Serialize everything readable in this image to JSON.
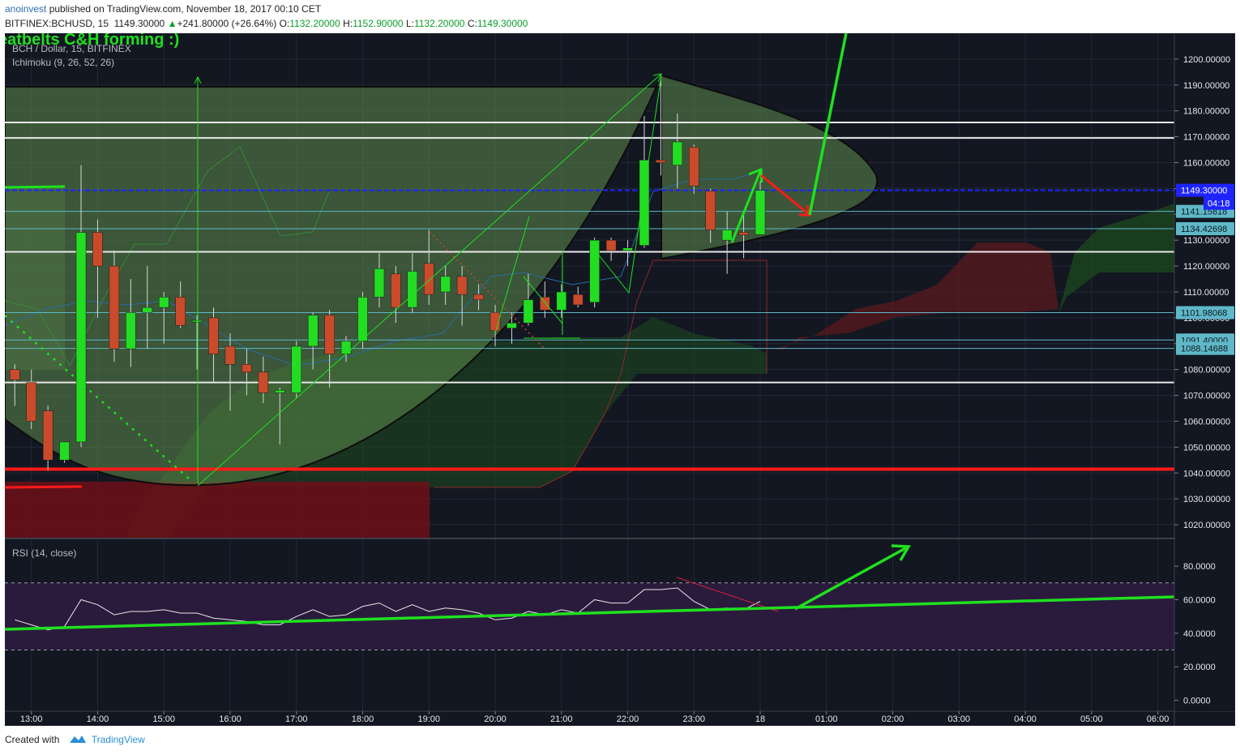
{
  "header": {
    "author": "anoinvest",
    "published_text": " published on TradingView.com, November 18, 2017 00:10 CET",
    "symbol": "BITFINEX:BCHUSD, 15",
    "last": "1149.30000",
    "change_arrow": "▲",
    "change": "+241.80000 (+26.64%)",
    "o_label": "O:",
    "o_value": "1132.20000",
    "h_label": "H:",
    "h_value": "1152.90000",
    "l_label": "L:",
    "l_value": "1132.20000",
    "c_label": "C:",
    "c_value": "1149.30000"
  },
  "chart_overlay": {
    "annotation": "eatbelts C&H forming :)",
    "instrument_title": "BCH / Dollar, 15, BITFINEX",
    "indicator_label": "Ichimoku (9, 26, 52, 26)",
    "rsi_label": "RSI (14, close)",
    "countdown": "04:18"
  },
  "footer": {
    "created_with": "Created with",
    "brand": "TradingView"
  },
  "colors": {
    "background": "#131722",
    "bull": "#22dd22",
    "bear": "#c94b2b",
    "annotation_green": "#1fe01f",
    "annotation_red": "#ff1a1a",
    "current_price_line": "#1e24ff",
    "rsi_band": "#2a1b3d",
    "cloud_bull": "#1d4a1d",
    "cloud_bear": "#5a1a1e"
  },
  "chart_data": {
    "type": "candlestick",
    "price_axis": {
      "range": [
        1015,
        1210
      ],
      "ticks": [
        "1200.00000",
        "1190.00000",
        "1180.00000",
        "1170.00000",
        "1160.00000",
        "1150.00000",
        "1140.00000",
        "1130.00000",
        "1120.00000",
        "1110.00000",
        "1100.00000",
        "1090.00000",
        "1080.00000",
        "1070.00000",
        "1060.00000",
        "1050.00000",
        "1040.00000",
        "1030.00000",
        "1020.00000"
      ],
      "tick_values": [
        1200,
        1190,
        1180,
        1170,
        1160,
        1150,
        1140,
        1130,
        1120,
        1110,
        1100,
        1090,
        1080,
        1070,
        1060,
        1050,
        1040,
        1030,
        1020
      ],
      "price_labels": [
        {
          "text": "1149.30000",
          "value": 1149.3,
          "kind": "current"
        },
        {
          "text": "1141.15818",
          "value": 1141.16,
          "kind": "level"
        },
        {
          "text": "1134.42698",
          "value": 1134.43,
          "kind": "level"
        },
        {
          "text": "1101.98068",
          "value": 1101.98,
          "kind": "level"
        },
        {
          "text": "1091.40000",
          "value": 1091.4,
          "kind": "level"
        },
        {
          "text": "1088.14688",
          "value": 1088.15,
          "kind": "level"
        }
      ]
    },
    "time_axis": {
      "labels": [
        "13:00",
        "14:00",
        "15:00",
        "16:00",
        "17:00",
        "18:00",
        "19:00",
        "20:00",
        "21:00",
        "22:00",
        "23:00",
        "18",
        "01:00",
        "02:00",
        "03:00",
        "04:00",
        "05:00",
        "06:00"
      ],
      "label_hours": [
        13,
        14,
        15,
        16,
        17,
        18,
        19,
        20,
        21,
        22,
        23,
        24,
        25,
        26,
        27,
        28,
        29,
        30
      ],
      "range_hours": [
        12.6,
        30.25
      ]
    },
    "candles": [
      {
        "t": 12.75,
        "o": 1080,
        "h": 1082,
        "l": 1066,
        "c": 1076
      },
      {
        "t": 13.0,
        "o": 1075,
        "h": 1080,
        "l": 1057,
        "c": 1060
      },
      {
        "t": 13.25,
        "o": 1064,
        "h": 1066,
        "l": 1041,
        "c": 1045
      },
      {
        "t": 13.5,
        "o": 1045,
        "h": 1051,
        "l": 1044,
        "c": 1052
      },
      {
        "t": 13.75,
        "o": 1052,
        "h": 1159,
        "l": 1050,
        "c": 1133
      },
      {
        "t": 14.0,
        "o": 1133,
        "h": 1138,
        "l": 1100,
        "c": 1120
      },
      {
        "t": 14.25,
        "o": 1120,
        "h": 1126,
        "l": 1083,
        "c": 1088
      },
      {
        "t": 14.5,
        "o": 1088,
        "h": 1115,
        "l": 1081,
        "c": 1102
      },
      {
        "t": 14.75,
        "o": 1102,
        "h": 1120,
        "l": 1088,
        "c": 1104
      },
      {
        "t": 15.0,
        "o": 1104,
        "h": 1110,
        "l": 1090,
        "c": 1108
      },
      {
        "t": 15.25,
        "o": 1108,
        "h": 1114,
        "l": 1096,
        "c": 1097
      },
      {
        "t": 15.5,
        "o": 1099,
        "h": 1101,
        "l": 1080,
        "c": 1099
      },
      {
        "t": 15.75,
        "o": 1100,
        "h": 1104,
        "l": 1075,
        "c": 1086
      },
      {
        "t": 16.0,
        "o": 1089,
        "h": 1094,
        "l": 1064,
        "c": 1082
      },
      {
        "t": 16.25,
        "o": 1082,
        "h": 1088,
        "l": 1070,
        "c": 1079
      },
      {
        "t": 16.5,
        "o": 1079,
        "h": 1085,
        "l": 1067,
        "c": 1071
      },
      {
        "t": 16.75,
        "o": 1071,
        "h": 1073,
        "l": 1051,
        "c": 1072
      },
      {
        "t": 17.0,
        "o": 1071,
        "h": 1091,
        "l": 1069,
        "c": 1089
      },
      {
        "t": 17.25,
        "o": 1089,
        "h": 1102,
        "l": 1080,
        "c": 1101
      },
      {
        "t": 17.5,
        "o": 1101,
        "h": 1103,
        "l": 1073,
        "c": 1086
      },
      {
        "t": 17.75,
        "o": 1086,
        "h": 1093,
        "l": 1083,
        "c": 1091
      },
      {
        "t": 18.0,
        "o": 1091,
        "h": 1110,
        "l": 1088,
        "c": 1108
      },
      {
        "t": 18.25,
        "o": 1108,
        "h": 1125,
        "l": 1104,
        "c": 1119
      },
      {
        "t": 18.5,
        "o": 1117,
        "h": 1120,
        "l": 1098,
        "c": 1104
      },
      {
        "t": 18.75,
        "o": 1104,
        "h": 1125,
        "l": 1102,
        "c": 1118
      },
      {
        "t": 19.0,
        "o": 1121,
        "h": 1134,
        "l": 1105,
        "c": 1109
      },
      {
        "t": 19.25,
        "o": 1110,
        "h": 1120,
        "l": 1105,
        "c": 1116
      },
      {
        "t": 19.5,
        "o": 1116,
        "h": 1120,
        "l": 1097,
        "c": 1109
      },
      {
        "t": 19.75,
        "o": 1109,
        "h": 1113,
        "l": 1103,
        "c": 1107
      },
      {
        "t": 20.0,
        "o": 1102,
        "h": 1105,
        "l": 1089,
        "c": 1095
      },
      {
        "t": 20.25,
        "o": 1096,
        "h": 1102,
        "l": 1090,
        "c": 1098
      },
      {
        "t": 20.5,
        "o": 1098,
        "h": 1117,
        "l": 1097,
        "c": 1107
      },
      {
        "t": 20.75,
        "o": 1108,
        "h": 1114,
        "l": 1100,
        "c": 1103
      },
      {
        "t": 21.0,
        "o": 1103,
        "h": 1113,
        "l": 1100,
        "c": 1110
      },
      {
        "t": 21.25,
        "o": 1109,
        "h": 1112,
        "l": 1104,
        "c": 1105
      },
      {
        "t": 21.5,
        "o": 1106,
        "h": 1131,
        "l": 1104,
        "c": 1130
      },
      {
        "t": 21.75,
        "o": 1130,
        "h": 1131,
        "l": 1122,
        "c": 1126
      },
      {
        "t": 22.0,
        "o": 1126,
        "h": 1130,
        "l": 1120,
        "c": 1127
      },
      {
        "t": 22.25,
        "o": 1128,
        "h": 1178,
        "l": 1127,
        "c": 1161
      },
      {
        "t": 22.5,
        "o": 1161,
        "h": 1193,
        "l": 1155,
        "c": 1160
      },
      {
        "t": 22.75,
        "o": 1159,
        "h": 1179,
        "l": 1150,
        "c": 1168
      },
      {
        "t": 23.0,
        "o": 1166,
        "h": 1167,
        "l": 1148,
        "c": 1151
      },
      {
        "t": 23.25,
        "o": 1149,
        "h": 1150,
        "l": 1129,
        "c": 1134
      },
      {
        "t": 23.5,
        "o": 1130,
        "h": 1141,
        "l": 1117,
        "c": 1134
      },
      {
        "t": 23.75,
        "o": 1133,
        "h": 1140,
        "l": 1123,
        "c": 1132
      },
      {
        "t": 24.0,
        "o": 1132.2,
        "h": 1152.9,
        "l": 1132.2,
        "c": 1149.3
      }
    ],
    "horizontal_levels": [
      {
        "value": 1175.5,
        "color": "#e8e8e8"
      },
      {
        "value": 1169.5,
        "color": "#e8e8e8"
      },
      {
        "value": 1125.5,
        "color": "#e8e8e8"
      },
      {
        "value": 1075.0,
        "color": "#e8e8e8"
      },
      {
        "value": 1041.5,
        "color": "#ff1a1a"
      }
    ],
    "rsi": {
      "range": [
        -6,
        96
      ],
      "ticks": [
        "80.0000",
        "60.0000",
        "40.0000",
        "20.0000",
        "0.0000"
      ],
      "tick_values": [
        80,
        60,
        40,
        20,
        0
      ],
      "overbought": 70,
      "oversold": 30,
      "values": [
        {
          "t": 12.75,
          "v": 48
        },
        {
          "t": 13.0,
          "v": 45
        },
        {
          "t": 13.25,
          "v": 42
        },
        {
          "t": 13.5,
          "v": 44
        },
        {
          "t": 13.75,
          "v": 60
        },
        {
          "t": 14.0,
          "v": 57
        },
        {
          "t": 14.25,
          "v": 51
        },
        {
          "t": 14.5,
          "v": 53
        },
        {
          "t": 14.75,
          "v": 53
        },
        {
          "t": 15.0,
          "v": 54
        },
        {
          "t": 15.25,
          "v": 52
        },
        {
          "t": 15.5,
          "v": 52
        },
        {
          "t": 15.75,
          "v": 49
        },
        {
          "t": 16.0,
          "v": 48
        },
        {
          "t": 16.25,
          "v": 47
        },
        {
          "t": 16.5,
          "v": 45
        },
        {
          "t": 16.75,
          "v": 45
        },
        {
          "t": 17.0,
          "v": 50
        },
        {
          "t": 17.25,
          "v": 54
        },
        {
          "t": 17.5,
          "v": 50
        },
        {
          "t": 17.75,
          "v": 51
        },
        {
          "t": 18.0,
          "v": 56
        },
        {
          "t": 18.25,
          "v": 58
        },
        {
          "t": 18.5,
          "v": 53
        },
        {
          "t": 18.75,
          "v": 57
        },
        {
          "t": 19.0,
          "v": 53
        },
        {
          "t": 19.25,
          "v": 55
        },
        {
          "t": 19.5,
          "v": 54
        },
        {
          "t": 19.75,
          "v": 52
        },
        {
          "t": 20.0,
          "v": 48
        },
        {
          "t": 20.25,
          "v": 49
        },
        {
          "t": 20.5,
          "v": 53
        },
        {
          "t": 20.75,
          "v": 51
        },
        {
          "t": 21.0,
          "v": 54
        },
        {
          "t": 21.25,
          "v": 52
        },
        {
          "t": 21.5,
          "v": 60
        },
        {
          "t": 21.75,
          "v": 58
        },
        {
          "t": 22.0,
          "v": 58
        },
        {
          "t": 22.25,
          "v": 66
        },
        {
          "t": 22.5,
          "v": 66
        },
        {
          "t": 22.75,
          "v": 67
        },
        {
          "t": 23.0,
          "v": 59
        },
        {
          "t": 23.25,
          "v": 54
        },
        {
          "t": 23.5,
          "v": 55
        },
        {
          "t": 23.75,
          "v": 54
        },
        {
          "t": 24.0,
          "v": 59
        }
      ]
    }
  }
}
